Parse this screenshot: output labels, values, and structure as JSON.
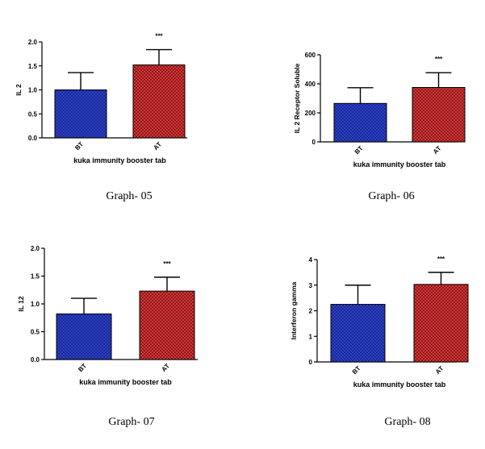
{
  "bar_colors": {
    "BT": "#1a2a9a",
    "AT": "#c42a2a"
  },
  "chart_data": [
    {
      "type": "bar",
      "categories": [
        "BT",
        "AT"
      ],
      "values": [
        1.0,
        1.52
      ],
      "errors": [
        0.36,
        0.32
      ],
      "significance": [
        "",
        "***"
      ],
      "ylabel": "IL 2",
      "xlabel": "kuka immunity booster tab",
      "ylim": [
        0,
        2.0
      ],
      "yticks": [
        0.0,
        0.5,
        1.0,
        1.5,
        2.0
      ],
      "ytick_labels": [
        "0.0",
        "0.5",
        "1.0",
        "1.5",
        "2.0"
      ],
      "caption": "Graph- 05"
    },
    {
      "type": "bar",
      "categories": [
        "BT",
        "AT"
      ],
      "values": [
        265,
        375
      ],
      "errors": [
        108,
        102
      ],
      "significance": [
        "",
        "***"
      ],
      "ylabel": "IL 2 Receptor Soluble",
      "xlabel": "kuka immunity booster tab",
      "ylim": [
        0,
        600
      ],
      "yticks": [
        0,
        200,
        400,
        600
      ],
      "ytick_labels": [
        "0",
        "200",
        "400",
        "600"
      ],
      "caption": "Graph- 06"
    },
    {
      "type": "bar",
      "categories": [
        "BT",
        "AT"
      ],
      "values": [
        0.82,
        1.23
      ],
      "errors": [
        0.28,
        0.25
      ],
      "significance": [
        "",
        "***"
      ],
      "ylabel": "IL 12",
      "xlabel": "kuka immunity booster tab",
      "ylim": [
        0,
        2.0
      ],
      "yticks": [
        0.0,
        0.5,
        1.0,
        1.5,
        2.0
      ],
      "ytick_labels": [
        "0.0",
        "0.5",
        "1.0",
        "1.5",
        "2.0"
      ],
      "caption": "Graph- 07"
    },
    {
      "type": "bar",
      "categories": [
        "BT",
        "AT"
      ],
      "values": [
        2.25,
        3.03
      ],
      "errors": [
        0.75,
        0.47
      ],
      "significance": [
        "",
        "***"
      ],
      "ylabel": "Interferon gamma",
      "xlabel": "kuka immunity booster tab",
      "ylim": [
        0,
        4
      ],
      "yticks": [
        0,
        1,
        2,
        3,
        4
      ],
      "ytick_labels": [
        "0",
        "1",
        "2",
        "3",
        "4"
      ],
      "caption": "Graph- 08"
    }
  ]
}
